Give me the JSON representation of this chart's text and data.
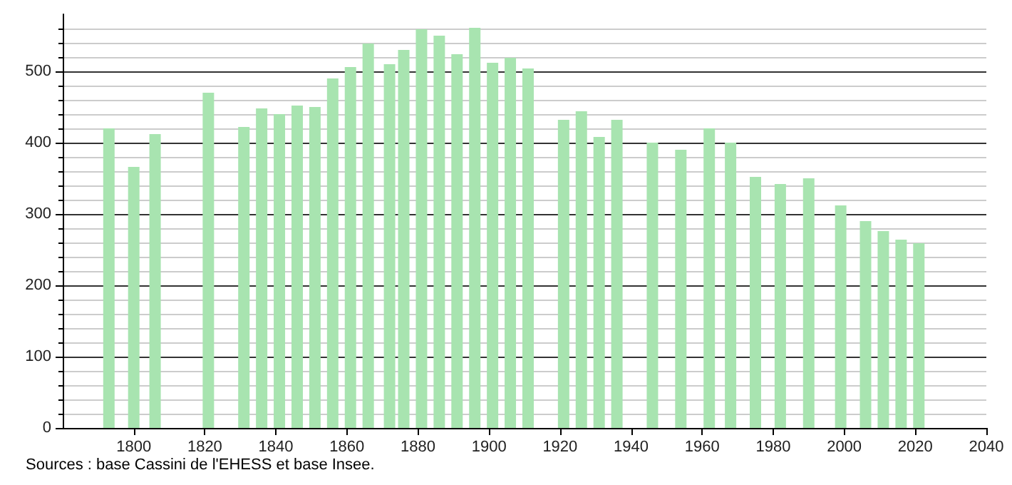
{
  "chart_data": {
    "type": "bar",
    "x": [
      1793,
      1800,
      1806,
      1821,
      1831,
      1836,
      1841,
      1846,
      1851,
      1856,
      1861,
      1866,
      1872,
      1876,
      1881,
      1886,
      1891,
      1896,
      1901,
      1906,
      1911,
      1921,
      1926,
      1931,
      1936,
      1946,
      1954,
      1962,
      1968,
      1975,
      1982,
      1990,
      1999,
      2006,
      2011,
      2016,
      2021
    ],
    "values": [
      420,
      366,
      412,
      470,
      422,
      448,
      440,
      452,
      450,
      490,
      506,
      539,
      510,
      530,
      559,
      550,
      524,
      561,
      512,
      519,
      504,
      432,
      444,
      408,
      432,
      400,
      390,
      420,
      400,
      352,
      342,
      350,
      312,
      290,
      276,
      264,
      259
    ],
    "color": "#a8e4b0",
    "xlim": [
      1780,
      2040
    ],
    "xticks": [
      1800,
      1820,
      1840,
      1860,
      1880,
      1900,
      1920,
      1940,
      1960,
      1980,
      2000,
      2020,
      2040
    ],
    "ylim": [
      0,
      580
    ],
    "yticks": [
      0,
      100,
      200,
      300,
      400,
      500
    ],
    "grid": "y",
    "annotations": [
      "Sources : base Cassini de l'EHESS et base Insee."
    ]
  }
}
